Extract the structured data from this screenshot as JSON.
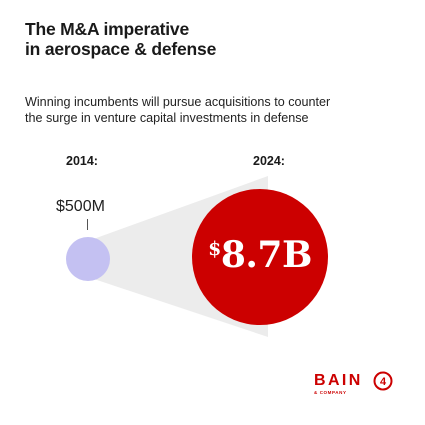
{
  "title_lines": [
    "The M&A imperative",
    "in aerospace & defense"
  ],
  "subtitle_lines": [
    "Winning incumbents will pursue acquisitions to counter",
    "the surge in venture capital investments in defense"
  ],
  "comparison": {
    "left": {
      "year": "2014:",
      "value": "$500M"
    },
    "right": {
      "year": "2024:",
      "currency": "$",
      "value": "8.7B"
    }
  },
  "colors": {
    "small_circle": "#c4c1f2",
    "big_circle": "#cc0000",
    "connector": "#ececec",
    "brand": "#cc0000"
  },
  "logo": {
    "word": "BAIN",
    "sub": "& COMPANY",
    "badge": "4"
  }
}
